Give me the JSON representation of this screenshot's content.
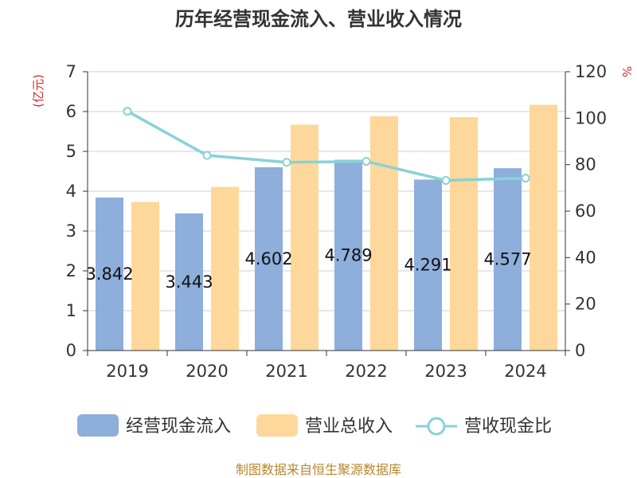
{
  "chart_data": {
    "type": "bar",
    "title": "历年经营现金流入、营业收入情况",
    "categories": [
      "2019",
      "2020",
      "2021",
      "2022",
      "2023",
      "2024"
    ],
    "series": [
      {
        "name": "经营现金流入",
        "type": "bar",
        "axis": "left",
        "values": [
          3.842,
          3.443,
          4.602,
          4.789,
          4.291,
          4.577
        ],
        "labels": [
          "3.842",
          "3.443",
          "4.602",
          "4.789",
          "4.291",
          "4.577"
        ],
        "color": "#8eaedb"
      },
      {
        "name": "营业总收入",
        "type": "bar",
        "axis": "left",
        "values": [
          3.73,
          4.11,
          5.67,
          5.88,
          5.86,
          6.17
        ],
        "color": "#fdd89a"
      },
      {
        "name": "营收现金比",
        "type": "line",
        "axis": "right",
        "values": [
          103,
          84,
          81,
          81.4,
          73.2,
          74.2
        ],
        "color": "#88d2d6"
      }
    ],
    "y_left": {
      "label": "(亿元)",
      "min": 0,
      "max": 7,
      "ticks": [
        "0",
        "1",
        "2",
        "3",
        "4",
        "5",
        "6",
        "7"
      ]
    },
    "y_right": {
      "label": "%",
      "min": 0,
      "max": 120,
      "ticks": [
        "0",
        "20",
        "40",
        "60",
        "80",
        "100",
        "120"
      ]
    },
    "legend": {
      "position": "bottom"
    },
    "source": "制图数据来自恒生聚源数据库"
  }
}
